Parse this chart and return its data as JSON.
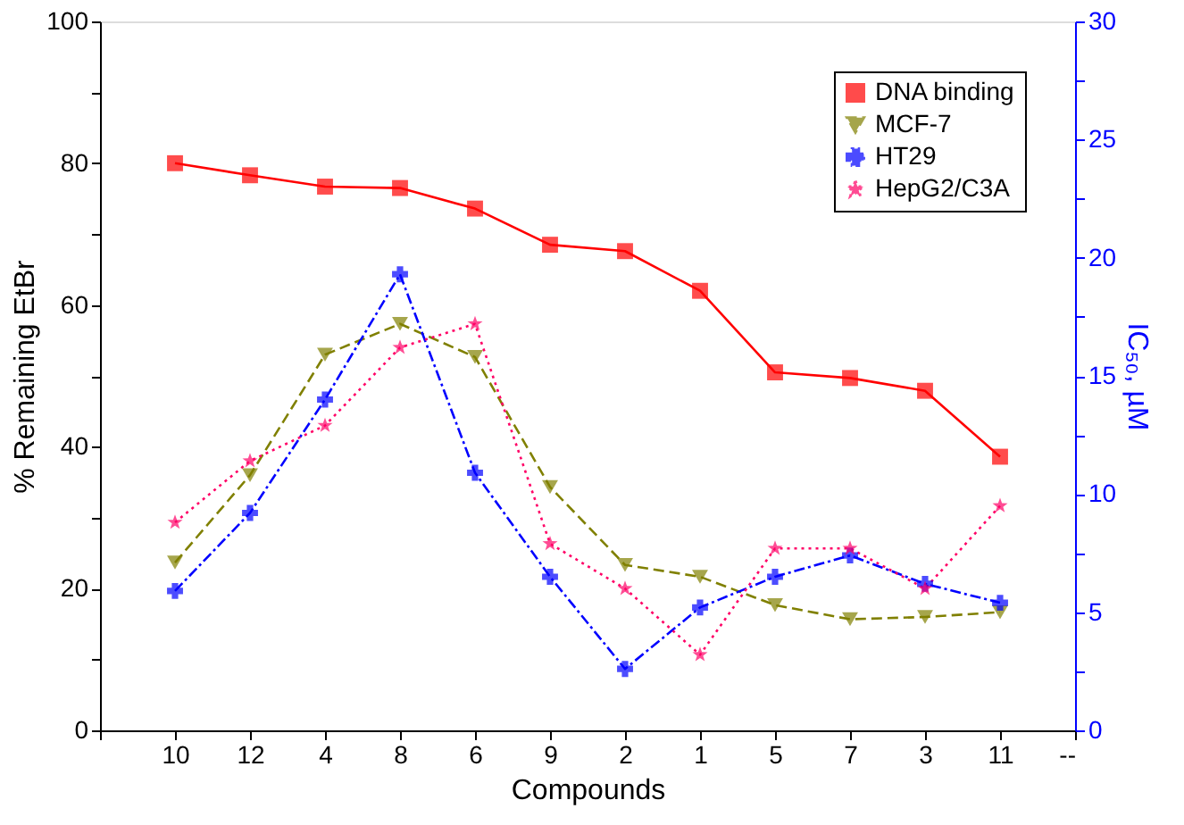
{
  "chart_data": {
    "type": "line",
    "categories": [
      null,
      "10",
      "12",
      "4",
      "8",
      "6",
      "9",
      "2",
      "1",
      "5",
      "7",
      "3",
      "11",
      "--"
    ],
    "xlabel": "Compounds",
    "ylabel": "% Remaining EtBr",
    "y2label": "IC₅₀, µM",
    "ylim": [
      0,
      100
    ],
    "yticks": [
      0,
      {
        "value": 10,
        "label": null
      },
      20,
      {
        "value": 30,
        "label": null
      },
      40,
      {
        "value": 50,
        "label": null
      },
      60,
      {
        "value": 70,
        "label": null
      },
      80,
      {
        "value": 90,
        "label": null
      },
      100
    ],
    "y2lim": [
      0,
      30
    ],
    "y2ticks": [
      0,
      {
        "value": 2.5,
        "label": null
      },
      5,
      {
        "value": 7.5,
        "label": null
      },
      10,
      {
        "value": 12.5,
        "label": null
      },
      15,
      {
        "value": 17.5,
        "label": null
      },
      20,
      {
        "value": 22.5,
        "label": null
      },
      25,
      {
        "value": 27.5,
        "label": null
      },
      30
    ],
    "grid": false,
    "legend": "top right",
    "series": [
      {
        "name": "DNA binding",
        "color": "#ff0000",
        "marker": "square",
        "line_style": "solid",
        "values": [
          null,
          80,
          78.3,
          76.7,
          76.5,
          73.6,
          68.5,
          67.6,
          62,
          50.5,
          49.7,
          47.9,
          38.6,
          null
        ]
      },
      {
        "name": "MCF-7",
        "color": "#808000",
        "marker": "triangle",
        "line_style": "dashed",
        "axis": "y2",
        "values": [
          null,
          7.1,
          10.8,
          15.9,
          17.2,
          15.8,
          10.3,
          7.0,
          6.5,
          5.3,
          4.7,
          4.8,
          5.0,
          null
        ]
      },
      {
        "name": "HT29",
        "color": "#0000ff",
        "marker": "cross",
        "line_style": "dashdot",
        "axis": "y2",
        "values": [
          null,
          5.9,
          9.2,
          14.0,
          19.3,
          10.9,
          6.5,
          2.6,
          5.2,
          6.5,
          7.4,
          6.2,
          5.4,
          null
        ]
      },
      {
        "name": "HepG2/C3A",
        "color": "#ff0066",
        "marker": "star",
        "line_style": "dotted",
        "axis": "y2",
        "values": [
          null,
          8.8,
          11.4,
          12.9,
          16.2,
          17.2,
          7.9,
          6.0,
          3.2,
          7.7,
          7.7,
          6.0,
          9.5,
          null
        ]
      }
    ]
  }
}
